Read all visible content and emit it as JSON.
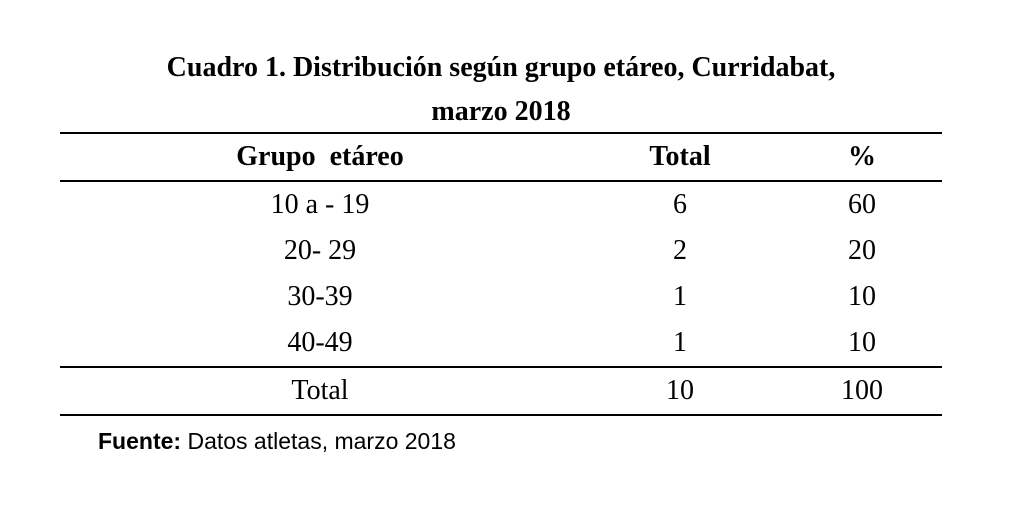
{
  "title": {
    "line1": "Cuadro 1. Distribución según grupo etáreo, Curridabat,",
    "line2": "marzo 2018"
  },
  "table": {
    "headers": [
      "Grupo  etáreo",
      "Total",
      "%"
    ],
    "rows": [
      [
        "10 a - 19",
        "6",
        "60"
      ],
      [
        "20- 29",
        "2",
        "20"
      ],
      [
        "30-39",
        "1",
        "10"
      ],
      [
        "40-49",
        "1",
        "10"
      ]
    ],
    "total_row": [
      "Total",
      "10",
      "100"
    ]
  },
  "source": {
    "label": "Fuente:",
    "text": " Datos atletas, marzo 2018"
  }
}
